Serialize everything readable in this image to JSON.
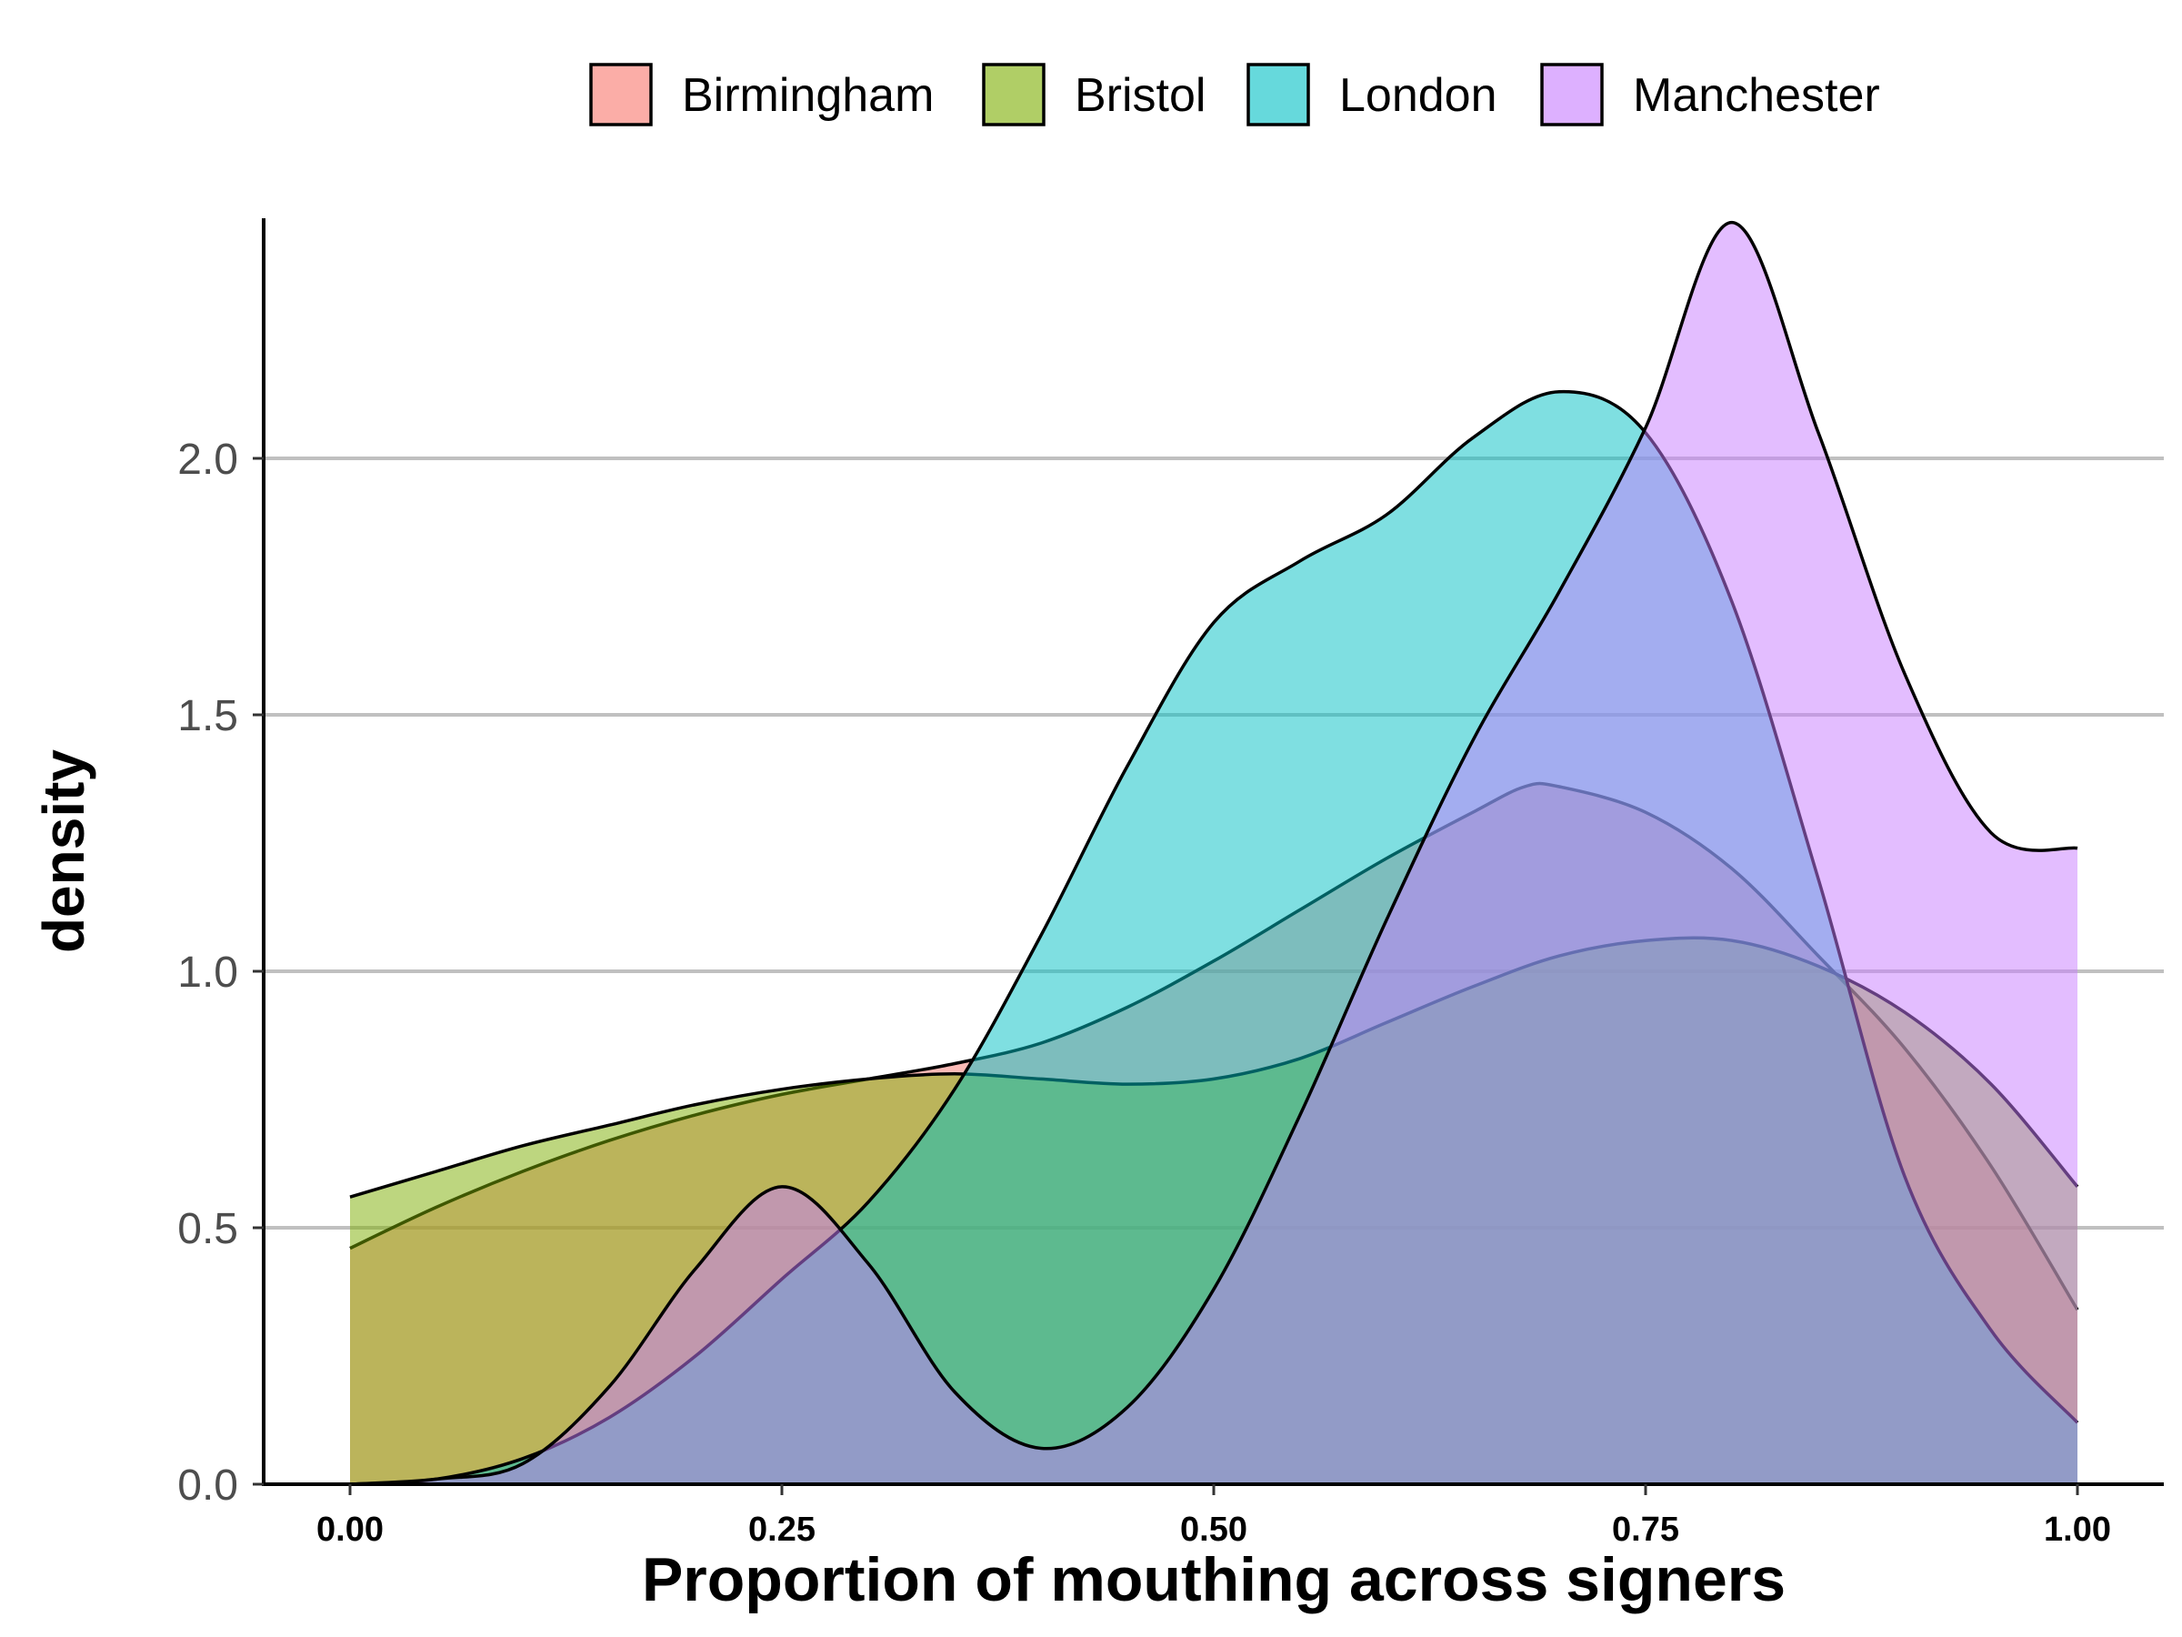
{
  "chart_data": {
    "type": "area",
    "title": "",
    "xlabel": "Proportion of mouthing across signers",
    "ylabel": "density",
    "xlim": [
      0,
      1
    ],
    "ylim": [
      0,
      2.46
    ],
    "x_ticks": [
      "0.00",
      "0.25",
      "0.50",
      "0.75",
      "1.00"
    ],
    "y_ticks": [
      "0.0",
      "0.5",
      "1.0",
      "1.5",
      "2.0"
    ],
    "grid": "horizontal major",
    "legend": "top",
    "series": [
      {
        "name": "Birmingham",
        "color": "#F8766D",
        "points": [
          [
            0,
            0.46
          ],
          [
            0.05,
            0.54
          ],
          [
            0.1,
            0.61
          ],
          [
            0.15,
            0.67
          ],
          [
            0.2,
            0.72
          ],
          [
            0.25,
            0.76
          ],
          [
            0.3,
            0.79
          ],
          [
            0.35,
            0.82
          ],
          [
            0.4,
            0.86
          ],
          [
            0.45,
            0.93
          ],
          [
            0.5,
            1.02
          ],
          [
            0.55,
            1.12
          ],
          [
            0.6,
            1.22
          ],
          [
            0.65,
            1.31
          ],
          [
            0.68,
            1.36
          ],
          [
            0.7,
            1.36
          ],
          [
            0.75,
            1.31
          ],
          [
            0.8,
            1.2
          ],
          [
            0.85,
            1.03
          ],
          [
            0.9,
            0.85
          ],
          [
            0.95,
            0.62
          ],
          [
            1,
            0.34
          ]
        ]
      },
      {
        "name": "Bristol",
        "color": "#7CAE00",
        "points": [
          [
            0,
            0.56
          ],
          [
            0.05,
            0.61
          ],
          [
            0.1,
            0.66
          ],
          [
            0.15,
            0.7
          ],
          [
            0.2,
            0.74
          ],
          [
            0.25,
            0.77
          ],
          [
            0.3,
            0.79
          ],
          [
            0.35,
            0.8
          ],
          [
            0.4,
            0.79
          ],
          [
            0.45,
            0.78
          ],
          [
            0.5,
            0.79
          ],
          [
            0.55,
            0.83
          ],
          [
            0.6,
            0.9
          ],
          [
            0.65,
            0.97
          ],
          [
            0.7,
            1.03
          ],
          [
            0.75,
            1.06
          ],
          [
            0.8,
            1.06
          ],
          [
            0.85,
            1.01
          ],
          [
            0.9,
            0.92
          ],
          [
            0.95,
            0.78
          ],
          [
            1,
            0.58
          ]
        ]
      },
      {
        "name": "London",
        "color": "#00BFC4",
        "points": [
          [
            0,
            0
          ],
          [
            0.05,
            0.01
          ],
          [
            0.1,
            0.05
          ],
          [
            0.15,
            0.13
          ],
          [
            0.2,
            0.25
          ],
          [
            0.25,
            0.4
          ],
          [
            0.3,
            0.55
          ],
          [
            0.35,
            0.77
          ],
          [
            0.4,
            1.07
          ],
          [
            0.45,
            1.4
          ],
          [
            0.5,
            1.68
          ],
          [
            0.55,
            1.8
          ],
          [
            0.6,
            1.89
          ],
          [
            0.65,
            2.04
          ],
          [
            0.7,
            2.13
          ],
          [
            0.75,
            2.05
          ],
          [
            0.8,
            1.72
          ],
          [
            0.85,
            1.18
          ],
          [
            0.9,
            0.6
          ],
          [
            0.95,
            0.3
          ],
          [
            1,
            0.12
          ]
        ]
      },
      {
        "name": "Manchester",
        "color": "#C77CFF",
        "points": [
          [
            0,
            0
          ],
          [
            0.05,
            0.01
          ],
          [
            0.1,
            0.04
          ],
          [
            0.15,
            0.19
          ],
          [
            0.2,
            0.42
          ],
          [
            0.25,
            0.58
          ],
          [
            0.3,
            0.43
          ],
          [
            0.35,
            0.18
          ],
          [
            0.4,
            0.07
          ],
          [
            0.45,
            0.15
          ],
          [
            0.5,
            0.38
          ],
          [
            0.55,
            0.72
          ],
          [
            0.6,
            1.1
          ],
          [
            0.65,
            1.45
          ],
          [
            0.7,
            1.74
          ],
          [
            0.75,
            2.06
          ],
          [
            0.8,
            2.46
          ],
          [
            0.85,
            2.05
          ],
          [
            0.9,
            1.58
          ],
          [
            0.95,
            1.27
          ],
          [
            1,
            1.24
          ]
        ]
      }
    ]
  }
}
